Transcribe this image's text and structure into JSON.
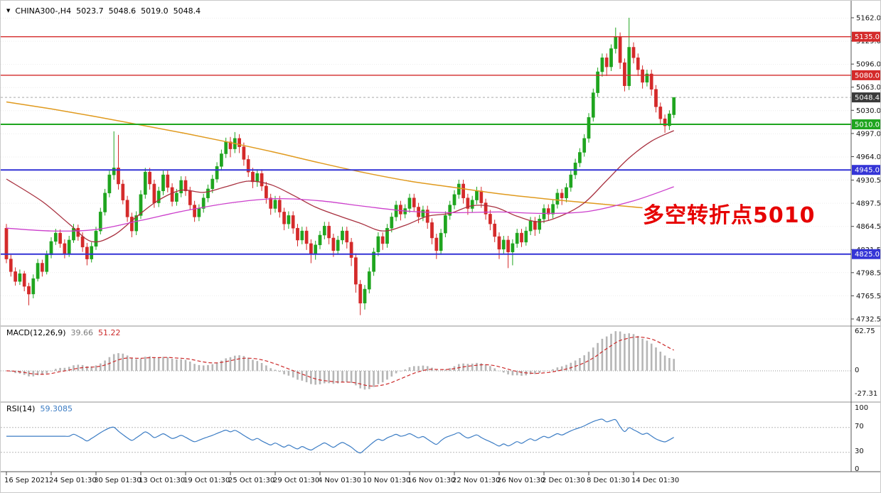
{
  "title_bar": {
    "symbol": "CHINA300-,H4",
    "open": "5023.7",
    "high": "5048.6",
    "low": "5019.0",
    "close": "5048.4"
  },
  "annotation": {
    "text": "多空转折点5010",
    "color": "#e60000"
  },
  "price_axis": {
    "labels": [
      "5162.0",
      "5129.0",
      "5096.0",
      "5063.0",
      "5030.0",
      "4997.0",
      "4964.0",
      "4930.5",
      "4897.5",
      "4864.5",
      "4831.5",
      "4798.5",
      "4765.5",
      "4732.5"
    ],
    "badges": [
      {
        "text": "5135.0",
        "price": 5135.0,
        "color": "#d42a2a"
      },
      {
        "text": "5080.0",
        "price": 5080.0,
        "color": "#d42a2a"
      },
      {
        "text": "5048.4",
        "price": 5048.4,
        "color": "#3a3a3a"
      },
      {
        "text": "5010.0",
        "price": 5010.0,
        "color": "#1fa51f"
      },
      {
        "text": "4945.0",
        "price": 4945.0,
        "color": "#3434d6"
      },
      {
        "text": "4825.0",
        "price": 4825.0,
        "color": "#3434d6"
      }
    ]
  },
  "hlines": [
    {
      "price": 5135.0,
      "color": "#d42a2a",
      "width": 1.4
    },
    {
      "price": 5080.0,
      "color": "#d42a2a",
      "width": 1.4
    },
    {
      "price": 5010.0,
      "color": "#1fa51f",
      "width": 2
    },
    {
      "price": 4945.0,
      "color": "#3434d6",
      "width": 2
    },
    {
      "price": 4825.0,
      "color": "#3434d6",
      "width": 2
    }
  ],
  "x_axis": {
    "labels": [
      "16 Sep 2021",
      "24 Sep 01:30",
      "30 Sep 01:30",
      "13 Oct 01:30",
      "19 Oct 01:30",
      "25 Oct 01:30",
      "29 Oct 01:30",
      "4 Nov 01:30",
      "10 Nov 01:30",
      "16 Nov 01:30",
      "22 Nov 01:30",
      "26 Nov 01:30",
      "2 Dec 01:30",
      "8 Dec 01:30",
      "14 Dec 01:30"
    ],
    "label_indices": [
      0,
      10,
      20,
      30,
      40,
      50,
      60,
      70,
      80,
      90,
      100,
      110,
      120,
      130,
      140
    ]
  },
  "panels": {
    "macd": {
      "name": "MACD(12,26,9)",
      "value1": "39.66",
      "value2": "51.22",
      "axis": [
        "62.75",
        "0",
        "-27.31"
      ],
      "axis_values": [
        62.75,
        0,
        -27.31
      ]
    },
    "rsi": {
      "name": "RSI(14)",
      "value": "59.3085",
      "axis": [
        "100",
        "70",
        "30",
        "0"
      ],
      "axis_values": [
        100,
        70,
        30,
        0
      ],
      "levels": [
        70,
        30
      ]
    }
  },
  "chart_data": {
    "type": "candlestick",
    "symbol": "CHINA300-",
    "timeframe": "H4",
    "last_price": 5048.4,
    "y_axis_ticks": [
      4732.5,
      5162.0,
      33
    ],
    "colors": {
      "up": "#1fa51f",
      "down": "#d42a2a",
      "macd_hist": "#b6b6b6",
      "macd_signal": "#cc2a2a",
      "rsi": "#3b7cc4",
      "grid": "#ececec"
    },
    "candles": [
      [
        4862,
        4868,
        4812,
        4818
      ],
      [
        4818,
        4824,
        4793,
        4800
      ],
      [
        4800,
        4806,
        4780,
        4786
      ],
      [
        4786,
        4803,
        4781,
        4797
      ],
      [
        4797,
        4801,
        4772,
        4779
      ],
      [
        4779,
        4784,
        4752,
        4768
      ],
      [
        4768,
        4796,
        4762,
        4790
      ],
      [
        4790,
        4818,
        4786,
        4812
      ],
      [
        4812,
        4817,
        4793,
        4800
      ],
      [
        4800,
        4830,
        4796,
        4824
      ],
      [
        4824,
        4849,
        4819,
        4843
      ],
      [
        4843,
        4861,
        4838,
        4855
      ],
      [
        4855,
        4860,
        4834,
        4840
      ],
      [
        4840,
        4846,
        4819,
        4826
      ],
      [
        4826,
        4851,
        4821,
        4845
      ],
      [
        4845,
        4868,
        4841,
        4862
      ],
      [
        4862,
        4867,
        4844,
        4850
      ],
      [
        4850,
        4856,
        4828,
        4835
      ],
      [
        4835,
        4841,
        4809,
        4818
      ],
      [
        4818,
        4842,
        4813,
        4836
      ],
      [
        4836,
        4864,
        4831,
        4858
      ],
      [
        4858,
        4891,
        4853,
        4885
      ],
      [
        4885,
        4918,
        4880,
        4912
      ],
      [
        4912,
        4944,
        4906,
        4938
      ],
      [
        4938,
        5000,
        4931,
        4948
      ],
      [
        4948,
        4995,
        4917,
        4925
      ],
      [
        4925,
        4931,
        4896,
        4902
      ],
      [
        4902,
        4908,
        4871,
        4878
      ],
      [
        4878,
        4884,
        4849,
        4858
      ],
      [
        4858,
        4886,
        4852,
        4880
      ],
      [
        4880,
        4916,
        4875,
        4910
      ],
      [
        4910,
        4948,
        4904,
        4942
      ],
      [
        4942,
        4948,
        4917,
        4925
      ],
      [
        4925,
        4931,
        4891,
        4898
      ],
      [
        4898,
        4921,
        4892,
        4915
      ],
      [
        4915,
        4944,
        4909,
        4938
      ],
      [
        4938,
        4944,
        4913,
        4920
      ],
      [
        4920,
        4926,
        4893,
        4900
      ],
      [
        4900,
        4918,
        4894,
        4912
      ],
      [
        4912,
        4936,
        4906,
        4930
      ],
      [
        4930,
        4936,
        4908,
        4915
      ],
      [
        4915,
        4921,
        4888,
        4895
      ],
      [
        4895,
        4901,
        4871,
        4878
      ],
      [
        4878,
        4896,
        4872,
        4890
      ],
      [
        4890,
        4911,
        4884,
        4905
      ],
      [
        4905,
        4924,
        4899,
        4918
      ],
      [
        4918,
        4938,
        4912,
        4932
      ],
      [
        4932,
        4956,
        4927,
        4950
      ],
      [
        4950,
        4974,
        4944,
        4968
      ],
      [
        4968,
        4991,
        4962,
        4985
      ],
      [
        4985,
        4992,
        4963,
        4975
      ],
      [
        4975,
        4999,
        4969,
        4990
      ],
      [
        4990,
        4996,
        4969,
        4978
      ],
      [
        4978,
        4984,
        4951,
        4960
      ],
      [
        4960,
        4966,
        4935,
        4942
      ],
      [
        4942,
        4948,
        4919,
        4928
      ],
      [
        4928,
        4946,
        4921,
        4940
      ],
      [
        4940,
        4946,
        4915,
        4922
      ],
      [
        4922,
        4928,
        4897,
        4905
      ],
      [
        4905,
        4911,
        4881,
        4890
      ],
      [
        4890,
        4908,
        4884,
        4902
      ],
      [
        4902,
        4908,
        4877,
        4885
      ],
      [
        4885,
        4891,
        4859,
        4868
      ],
      [
        4868,
        4886,
        4861,
        4880
      ],
      [
        4880,
        4886,
        4854,
        4862
      ],
      [
        4862,
        4868,
        4836,
        4845
      ],
      [
        4845,
        4864,
        4839,
        4858
      ],
      [
        4858,
        4864,
        4831,
        4840
      ],
      [
        4840,
        4846,
        4812,
        4825
      ],
      [
        4825,
        4844,
        4817,
        4838
      ],
      [
        4838,
        4858,
        4832,
        4852
      ],
      [
        4852,
        4871,
        4846,
        4865
      ],
      [
        4865,
        4871,
        4839,
        4848
      ],
      [
        4848,
        4854,
        4821,
        4830
      ],
      [
        4830,
        4851,
        4824,
        4845
      ],
      [
        4845,
        4864,
        4839,
        4858
      ],
      [
        4858,
        4864,
        4833,
        4842
      ],
      [
        4842,
        4848,
        4808,
        4820
      ],
      [
        4820,
        4826,
        4770,
        4782
      ],
      [
        4782,
        4788,
        4738,
        4755
      ],
      [
        4755,
        4781,
        4746,
        4775
      ],
      [
        4775,
        4806,
        4769,
        4800
      ],
      [
        4800,
        4834,
        4794,
        4828
      ],
      [
        4828,
        4856,
        4822,
        4850
      ],
      [
        4850,
        4856,
        4831,
        4840
      ],
      [
        4840,
        4868,
        4834,
        4862
      ],
      [
        4862,
        4884,
        4856,
        4878
      ],
      [
        4878,
        4901,
        4872,
        4895
      ],
      [
        4895,
        4901,
        4873,
        4882
      ],
      [
        4882,
        4896,
        4876,
        4890
      ],
      [
        4890,
        4911,
        4884,
        4905
      ],
      [
        4905,
        4911,
        4885,
        4892
      ],
      [
        4892,
        4898,
        4869,
        4878
      ],
      [
        4878,
        4894,
        4872,
        4888
      ],
      [
        4888,
        4894,
        4861,
        4870
      ],
      [
        4870,
        4876,
        4839,
        4848
      ],
      [
        4848,
        4854,
        4818,
        4830
      ],
      [
        4830,
        4861,
        4824,
        4855
      ],
      [
        4855,
        4886,
        4849,
        4880
      ],
      [
        4880,
        4901,
        4874,
        4895
      ],
      [
        4895,
        4916,
        4889,
        4910
      ],
      [
        4910,
        4931,
        4904,
        4925
      ],
      [
        4925,
        4931,
        4897,
        4905
      ],
      [
        4905,
        4911,
        4881,
        4890
      ],
      [
        4890,
        4908,
        4884,
        4902
      ],
      [
        4902,
        4921,
        4896,
        4915
      ],
      [
        4915,
        4921,
        4891,
        4898
      ],
      [
        4898,
        4904,
        4874,
        4882
      ],
      [
        4882,
        4888,
        4859,
        4868
      ],
      [
        4868,
        4874,
        4842,
        4850
      ],
      [
        4850,
        4856,
        4818,
        4832
      ],
      [
        4832,
        4851,
        4825,
        4845
      ],
      [
        4845,
        4851,
        4805,
        4828
      ],
      [
        4828,
        4846,
        4809,
        4840
      ],
      [
        4840,
        4861,
        4834,
        4855
      ],
      [
        4855,
        4861,
        4835,
        4842
      ],
      [
        4842,
        4864,
        4837,
        4858
      ],
      [
        4858,
        4878,
        4852,
        4872
      ],
      [
        4872,
        4878,
        4851,
        4860
      ],
      [
        4860,
        4881,
        4854,
        4875
      ],
      [
        4875,
        4896,
        4869,
        4890
      ],
      [
        4890,
        4896,
        4873,
        4882
      ],
      [
        4882,
        4902,
        4876,
        4896
      ],
      [
        4896,
        4918,
        4890,
        4912
      ],
      [
        4912,
        4918,
        4895,
        4905
      ],
      [
        4905,
        4926,
        4899,
        4920
      ],
      [
        4920,
        4944,
        4914,
        4938
      ],
      [
        4938,
        4961,
        4932,
        4955
      ],
      [
        4955,
        4976,
        4949,
        4970
      ],
      [
        4970,
        4996,
        4964,
        4990
      ],
      [
        4990,
        5026,
        4984,
        5020
      ],
      [
        5020,
        5061,
        5014,
        5055
      ],
      [
        5055,
        5091,
        5049,
        5085
      ],
      [
        5085,
        5111,
        5078,
        5105
      ],
      [
        5105,
        5111,
        5079,
        5092
      ],
      [
        5092,
        5124,
        5086,
        5118
      ],
      [
        5118,
        5148,
        5111,
        5135
      ],
      [
        5135,
        5141,
        5089,
        5098
      ],
      [
        5098,
        5104,
        5057,
        5065
      ],
      [
        5065,
        5162,
        5059,
        5120
      ],
      [
        5120,
        5127,
        5097,
        5105
      ],
      [
        5105,
        5111,
        5079,
        5088
      ],
      [
        5088,
        5094,
        5061,
        5070
      ],
      [
        5070,
        5088,
        5064,
        5082
      ],
      [
        5082,
        5088,
        5051,
        5060
      ],
      [
        5060,
        5066,
        5027,
        5035
      ],
      [
        5035,
        5041,
        5009,
        5018
      ],
      [
        5018,
        5024,
        4998,
        5008
      ],
      [
        5008,
        5030,
        5002,
        5025
      ],
      [
        5023.7,
        5048.6,
        5019.0,
        5048.4
      ]
    ],
    "ma_lines": [
      {
        "name": "ma-orange",
        "color": "#e09a1e",
        "width": 1.5,
        "points": [
          [
            0,
            5042
          ],
          [
            10,
            5032
          ],
          [
            20,
            5021
          ],
          [
            30,
            5009
          ],
          [
            40,
            4997
          ],
          [
            50,
            4984
          ],
          [
            60,
            4970
          ],
          [
            70,
            4955
          ],
          [
            80,
            4941
          ],
          [
            90,
            4929
          ],
          [
            100,
            4920
          ],
          [
            110,
            4911
          ],
          [
            120,
            4904
          ],
          [
            130,
            4898
          ],
          [
            142,
            4891
          ]
        ]
      },
      {
        "name": "ma-darkred",
        "color": "#a8303f",
        "width": 1.3,
        "points": [
          [
            0,
            4932
          ],
          [
            8,
            4900
          ],
          [
            14,
            4868
          ],
          [
            19,
            4843
          ],
          [
            24,
            4852
          ],
          [
            29,
            4878
          ],
          [
            34,
            4902
          ],
          [
            39,
            4916
          ],
          [
            44,
            4913
          ],
          [
            49,
            4921
          ],
          [
            54,
            4929
          ],
          [
            59,
            4924
          ],
          [
            64,
            4909
          ],
          [
            69,
            4892
          ],
          [
            74,
            4880
          ],
          [
            79,
            4869
          ],
          [
            84,
            4858
          ],
          [
            89,
            4866
          ],
          [
            94,
            4879
          ],
          [
            99,
            4883
          ],
          [
            104,
            4894
          ],
          [
            109,
            4892
          ],
          [
            114,
            4879
          ],
          [
            119,
            4871
          ],
          [
            124,
            4880
          ],
          [
            129,
            4898
          ],
          [
            134,
            4930
          ],
          [
            139,
            4962
          ],
          [
            144,
            4986
          ],
          [
            149,
            5001
          ]
        ]
      },
      {
        "name": "ma-magenta",
        "color": "#cc3fcc",
        "width": 1.3,
        "points": [
          [
            0,
            4862
          ],
          [
            10,
            4858
          ],
          [
            20,
            4860
          ],
          [
            30,
            4873
          ],
          [
            40,
            4887
          ],
          [
            50,
            4898
          ],
          [
            60,
            4904
          ],
          [
            70,
            4901
          ],
          [
            80,
            4893
          ],
          [
            90,
            4886
          ],
          [
            100,
            4884
          ],
          [
            110,
            4885
          ],
          [
            120,
            4883
          ],
          [
            130,
            4886
          ],
          [
            140,
            4901
          ],
          [
            149,
            4921
          ]
        ]
      }
    ]
  }
}
